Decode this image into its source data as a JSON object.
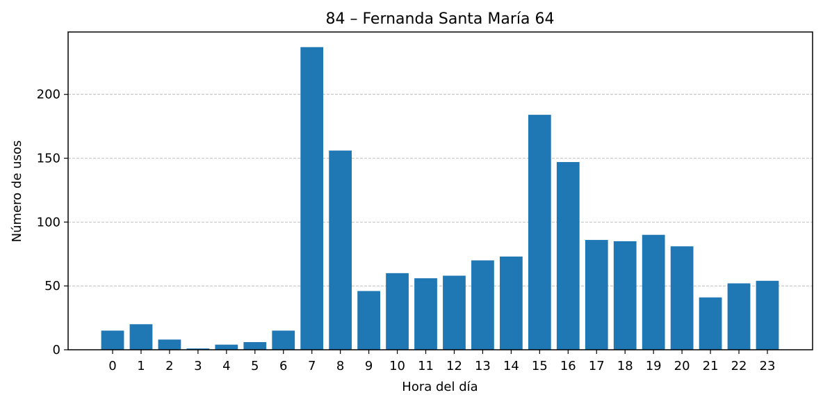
{
  "chart_data": {
    "type": "bar",
    "title": "84 – Fernanda Santa María 64",
    "xlabel": "Hora del día",
    "ylabel": "Número de usos",
    "categories": [
      "0",
      "1",
      "2",
      "3",
      "4",
      "5",
      "6",
      "7",
      "8",
      "9",
      "10",
      "11",
      "12",
      "13",
      "14",
      "15",
      "16",
      "17",
      "18",
      "19",
      "20",
      "21",
      "22",
      "23"
    ],
    "values": [
      15,
      20,
      8,
      1,
      4,
      6,
      15,
      237,
      156,
      46,
      60,
      56,
      58,
      70,
      73,
      184,
      147,
      86,
      85,
      90,
      81,
      41,
      52,
      54
    ],
    "yticks": [
      0,
      50,
      100,
      150,
      200
    ],
    "ylim": [
      0,
      248.85
    ],
    "grid": "y-dashed",
    "bar_color": "#1f77b4"
  }
}
